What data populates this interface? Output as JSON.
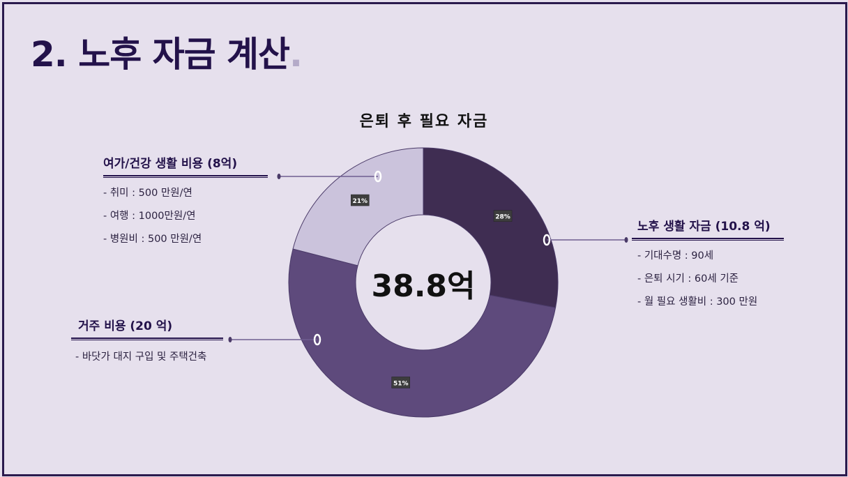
{
  "title": "2. 노후 자금 계산",
  "title_dot": ".",
  "colors": {
    "frame": "#2a1a4d",
    "background": "#e6e0ed",
    "title": "#23124a",
    "slice_living": "#3f2d52",
    "slice_housing": "#5e4a7c",
    "slice_leisure": "#cbc3dc",
    "connector": "#6e5d90"
  },
  "chart_data": {
    "type": "pie",
    "title": "은퇴 후 필요 자금",
    "center_label": "38.8억",
    "categories": [
      "노후 생활 자금 (10.8 억)",
      "거주 비용 (20 억)",
      "여가/건강 생활 비용 (8억)"
    ],
    "values": [
      28,
      51,
      21
    ],
    "labels": [
      "28%",
      "51%",
      "21%"
    ],
    "colors": [
      "#3f2d52",
      "#5e4a7c",
      "#cbc3dc"
    ]
  },
  "groups": {
    "leisure": {
      "head": "여가/건강 생활 비용 (8억)",
      "items": [
        "- 취미 : 500 만원/연",
        "- 여행 : 1000만원/연",
        "- 병원비 : 500 만원/연"
      ]
    },
    "living": {
      "head": "노후 생활 자금 (10.8 억)",
      "items": [
        "- 기대수명 : 90세",
        "- 은퇴 시기 : 60세 기준",
        "- 월 필요 생활비 : 300 만원"
      ]
    },
    "housing": {
      "head": "거주 비용 (20 억)",
      "items": [
        "- 바닷가 대지 구입 및 주택건축"
      ]
    }
  }
}
